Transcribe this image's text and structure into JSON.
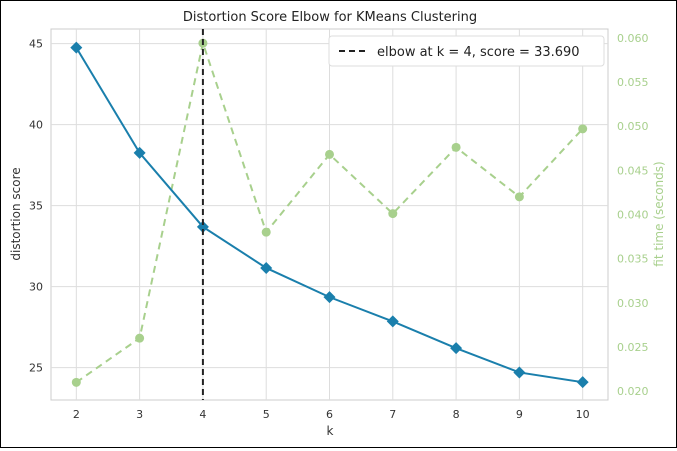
{
  "chart_data": {
    "type": "line",
    "title": "Distortion Score Elbow for KMeans Clustering",
    "xlabel": "k",
    "ylabel": "distortion score",
    "y2label": "fit time (seconds)",
    "x": [
      2,
      3,
      4,
      5,
      6,
      7,
      8,
      9,
      10
    ],
    "xlim": [
      1.6,
      10.4
    ],
    "ylim": [
      23.0,
      45.9
    ],
    "y2lim": [
      0.019,
      0.061
    ],
    "yticks": [
      25,
      30,
      35,
      40,
      45
    ],
    "y2ticks": [
      0.02,
      0.025,
      0.03,
      0.035,
      0.04,
      0.045,
      0.05,
      0.055,
      0.06
    ],
    "y2tick_labels": [
      "0.020",
      "0.025",
      "0.030",
      "0.035",
      "0.040",
      "0.045",
      "0.050",
      "0.055",
      "0.060"
    ],
    "grid": true,
    "legend_position": "top-right",
    "legend_text": "elbow at k = 4, score = 33.690",
    "series": [
      {
        "axis": "left",
        "color": "#1a7fac",
        "marker": "diamond",
        "values": [
          44.75,
          38.25,
          33.69,
          31.15,
          29.35,
          27.85,
          26.2,
          24.7,
          24.1
        ]
      },
      {
        "axis": "right",
        "color": "#a8d08d",
        "style": "dashed",
        "marker": "circle",
        "values": [
          0.021,
          0.026,
          0.0594,
          0.038,
          0.0468,
          0.0401,
          0.0476,
          0.042,
          0.0497
        ]
      }
    ],
    "elbow": {
      "k": 4,
      "score": 33.69,
      "color": "#222222"
    }
  }
}
